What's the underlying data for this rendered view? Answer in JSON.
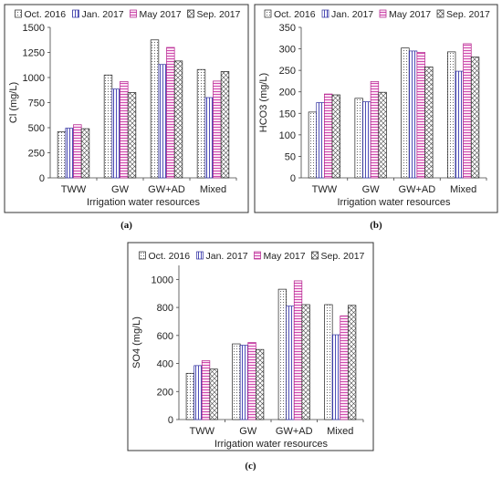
{
  "legend": [
    "Oct. 2016",
    "Jan. 2017",
    "May 2017",
    "Sep. 2017"
  ],
  "chart_data": [
    {
      "type": "bar",
      "panel": "(a)",
      "ylabel": "Cl (mg/L)",
      "xlabel": "Irrigation water resources",
      "categories": [
        "TWW",
        "GW",
        "GW+AD",
        "Mixed"
      ],
      "ylim": [
        0,
        1500
      ],
      "yticks": [
        0,
        250,
        500,
        750,
        1000,
        1250,
        1500
      ],
      "grid": false,
      "legend_position": "top",
      "series": [
        {
          "name": "Oct. 2016",
          "values": [
            460,
            1025,
            1375,
            1080
          ]
        },
        {
          "name": "Jan. 2017",
          "values": [
            495,
            885,
            1130,
            800
          ]
        },
        {
          "name": "May 2017",
          "values": [
            530,
            960,
            1300,
            965
          ]
        },
        {
          "name": "Sep. 2017",
          "values": [
            490,
            850,
            1165,
            1060
          ]
        }
      ]
    },
    {
      "type": "bar",
      "panel": "(b)",
      "ylabel": "HCO3 (mg/L)",
      "xlabel": "Irrigation water resources",
      "categories": [
        "TWW",
        "GW",
        "GW+AD",
        "Mixed"
      ],
      "ylim": [
        0,
        350
      ],
      "yticks": [
        0,
        50,
        100,
        150,
        200,
        250,
        300,
        350
      ],
      "grid": false,
      "legend_position": "top",
      "series": [
        {
          "name": "Oct. 2016",
          "values": [
            153,
            185,
            302,
            293
          ]
        },
        {
          "name": "Jan. 2017",
          "values": [
            175,
            177,
            295,
            248
          ]
        },
        {
          "name": "May 2017",
          "values": [
            195,
            224,
            292,
            312
          ]
        },
        {
          "name": "Sep. 2017",
          "values": [
            193,
            199,
            258,
            281
          ]
        }
      ]
    },
    {
      "type": "bar",
      "panel": "(c)",
      "ylabel": "SO4 (mg/L)",
      "xlabel": "Irrigation water resources",
      "categories": [
        "TWW",
        "GW",
        "GW+AD",
        "Mixed"
      ],
      "ylim": [
        0,
        1100
      ],
      "yticks": [
        0,
        200,
        400,
        600,
        800,
        1000
      ],
      "grid": false,
      "legend_position": "top",
      "series": [
        {
          "name": "Oct. 2016",
          "values": [
            330,
            540,
            930,
            820
          ]
        },
        {
          "name": "Jan. 2017",
          "values": [
            385,
            530,
            810,
            605
          ]
        },
        {
          "name": "May 2017",
          "values": [
            420,
            550,
            990,
            740
          ]
        },
        {
          "name": "Sep. 2017",
          "values": [
            360,
            500,
            820,
            815
          ]
        }
      ]
    }
  ]
}
